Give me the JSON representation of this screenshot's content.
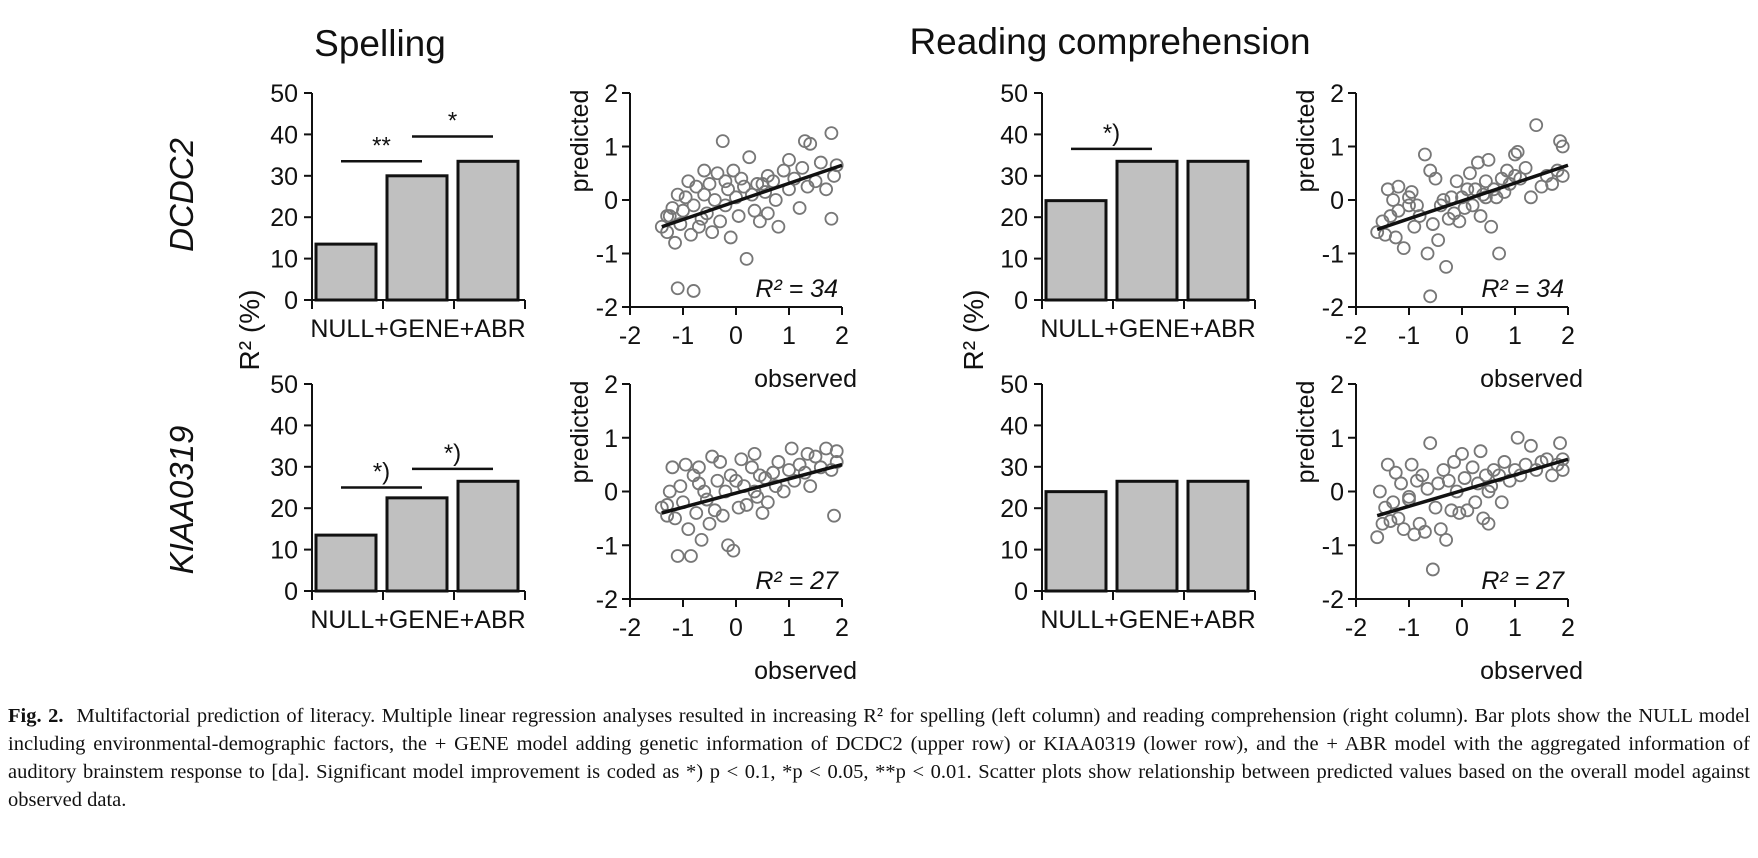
{
  "columns": [
    {
      "title": "Spelling"
    },
    {
      "title": "Reading comprehension"
    }
  ],
  "rows": [
    {
      "label": "DCDC2"
    },
    {
      "label": "KIAA0319"
    }
  ],
  "bar_ylabel": "R² (%)",
  "bar_category_text": "NULL+GENE+ABR",
  "scatter_xlabel": "observed",
  "scatter_ylabel": "predicted",
  "chart_data": [
    {
      "type": "bar",
      "panel": "Spelling / DCDC2",
      "categories": [
        "NULL",
        "+GENE",
        "+ABR"
      ],
      "values": [
        13.5,
        30,
        33.5
      ],
      "ylim": [
        0,
        50
      ],
      "yticks": [
        0,
        10,
        20,
        30,
        40,
        50
      ],
      "significance": [
        {
          "from": 0,
          "to": 1,
          "label": "**",
          "y": 33.5
        },
        {
          "from": 1,
          "to": 2,
          "label": "*",
          "y": 39.5
        }
      ]
    },
    {
      "type": "scatter",
      "panel": "Spelling / DCDC2",
      "xlabel": "observed",
      "ylabel": "predicted",
      "xlim": [
        -2,
        2
      ],
      "ylim": [
        -2,
        2
      ],
      "xticks": [
        -2,
        -1,
        0,
        1,
        2
      ],
      "yticks": [
        -2,
        -1,
        0,
        1,
        2
      ],
      "fit_line": [
        [
          -1.4,
          -0.5
        ],
        [
          2,
          0.65
        ]
      ],
      "annotation": "R² = 34",
      "points": [
        [
          -1.4,
          -0.5
        ],
        [
          -1.3,
          -0.6
        ],
        [
          -1.25,
          -0.3
        ],
        [
          -1.2,
          -0.15
        ],
        [
          -1.15,
          -0.8
        ],
        [
          -1.1,
          0.1
        ],
        [
          -1.05,
          -0.45
        ],
        [
          -1.0,
          -0.2
        ],
        [
          -0.95,
          0.05
        ],
        [
          -0.9,
          0.35
        ],
        [
          -0.85,
          -0.65
        ],
        [
          -0.8,
          -0.1
        ],
        [
          -0.75,
          0.25
        ],
        [
          -0.7,
          -0.5
        ],
        [
          -0.65,
          -0.35
        ],
        [
          -0.6,
          0.1
        ],
        [
          -0.55,
          -0.25
        ],
        [
          -0.5,
          0.3
        ],
        [
          -0.45,
          -0.6
        ],
        [
          -0.4,
          0.0
        ],
        [
          -0.35,
          0.5
        ],
        [
          -0.3,
          -0.4
        ],
        [
          -0.25,
          1.1
        ],
        [
          -0.2,
          -0.1
        ],
        [
          -0.15,
          0.2
        ],
        [
          -0.1,
          -0.7
        ],
        [
          -0.05,
          0.55
        ],
        [
          0.0,
          0.05
        ],
        [
          0.05,
          -0.3
        ],
        [
          0.1,
          0.4
        ],
        [
          0.15,
          0.25
        ],
        [
          0.2,
          -1.1
        ],
        [
          0.25,
          0.8
        ],
        [
          0.3,
          0.1
        ],
        [
          0.35,
          -0.2
        ],
        [
          0.4,
          0.3
        ],
        [
          0.45,
          -0.4
        ],
        [
          0.5,
          0.3
        ],
        [
          0.55,
          0.15
        ],
        [
          0.6,
          -0.25
        ],
        [
          0.7,
          0.35
        ],
        [
          0.75,
          0.0
        ],
        [
          0.8,
          -0.5
        ],
        [
          0.9,
          0.55
        ],
        [
          1.0,
          0.2
        ],
        [
          1.1,
          0.4
        ],
        [
          1.2,
          -0.15
        ],
        [
          1.25,
          0.6
        ],
        [
          1.3,
          1.1
        ],
        [
          1.35,
          0.25
        ],
        [
          1.4,
          1.05
        ],
        [
          1.5,
          0.35
        ],
        [
          1.6,
          0.7
        ],
        [
          1.7,
          0.2
        ],
        [
          1.8,
          1.25
        ],
        [
          1.8,
          -0.35
        ],
        [
          1.85,
          0.45
        ],
        [
          1.9,
          0.65
        ],
        [
          -1.1,
          -1.65
        ],
        [
          -0.8,
          -1.7
        ],
        [
          -1.3,
          -0.3
        ],
        [
          -0.6,
          0.55
        ],
        [
          0.6,
          0.45
        ],
        [
          -0.2,
          0.35
        ],
        [
          1.0,
          0.75
        ]
      ]
    },
    {
      "type": "bar",
      "panel": "Reading comprehension / DCDC2",
      "categories": [
        "NULL",
        "+GENE",
        "+ABR"
      ],
      "values": [
        24,
        33.5,
        33.5
      ],
      "ylim": [
        0,
        50
      ],
      "yticks": [
        0,
        10,
        20,
        30,
        40,
        50
      ],
      "significance": [
        {
          "from": 0,
          "to": 1,
          "label": "*)",
          "y": 36.5
        }
      ]
    },
    {
      "type": "scatter",
      "panel": "Reading comprehension / DCDC2",
      "xlabel": "observed",
      "ylabel": "predicted",
      "xlim": [
        -2,
        2
      ],
      "ylim": [
        -2,
        2
      ],
      "xticks": [
        -2,
        -1,
        0,
        1,
        2
      ],
      "yticks": [
        -2,
        -1,
        0,
        1,
        2
      ],
      "fit_line": [
        [
          -1.6,
          -0.55
        ],
        [
          2,
          0.65
        ]
      ],
      "annotation": "R² = 34",
      "points": [
        [
          -1.6,
          -0.6
        ],
        [
          -1.5,
          -0.4
        ],
        [
          -1.45,
          -0.65
        ],
        [
          -1.4,
          0.2
        ],
        [
          -1.35,
          -0.3
        ],
        [
          -1.3,
          0.0
        ],
        [
          -1.25,
          -0.7
        ],
        [
          -1.2,
          -0.2
        ],
        [
          -1.1,
          -0.9
        ],
        [
          -1.0,
          -0.1
        ],
        [
          -0.95,
          0.15
        ],
        [
          -0.9,
          -0.5
        ],
        [
          -0.85,
          -0.1
        ],
        [
          -0.8,
          -0.3
        ],
        [
          -0.7,
          0.85
        ],
        [
          -0.65,
          -1.0
        ],
        [
          -0.6,
          0.55
        ],
        [
          -0.55,
          -0.45
        ],
        [
          -0.5,
          0.4
        ],
        [
          -0.45,
          -0.75
        ],
        [
          -0.4,
          -0.1
        ],
        [
          -0.35,
          0.0
        ],
        [
          -0.3,
          -1.25
        ],
        [
          -0.25,
          -0.35
        ],
        [
          -0.2,
          0.05
        ],
        [
          -0.15,
          -0.25
        ],
        [
          -0.1,
          0.35
        ],
        [
          -0.05,
          -0.4
        ],
        [
          0.0,
          0.05
        ],
        [
          0.05,
          -0.15
        ],
        [
          0.1,
          0.2
        ],
        [
          0.15,
          0.5
        ],
        [
          0.2,
          -0.1
        ],
        [
          0.25,
          0.2
        ],
        [
          0.3,
          0.7
        ],
        [
          0.35,
          -0.3
        ],
        [
          0.4,
          0.1
        ],
        [
          0.45,
          0.35
        ],
        [
          0.5,
          0.75
        ],
        [
          0.55,
          -0.5
        ],
        [
          0.6,
          0.2
        ],
        [
          0.65,
          0.05
        ],
        [
          0.7,
          -1.0
        ],
        [
          0.75,
          0.4
        ],
        [
          0.8,
          0.15
        ],
        [
          0.85,
          0.55
        ],
        [
          0.9,
          0.3
        ],
        [
          1.0,
          0.85
        ],
        [
          1.05,
          0.9
        ],
        [
          1.1,
          0.4
        ],
        [
          1.2,
          0.6
        ],
        [
          1.3,
          0.05
        ],
        [
          1.4,
          1.4
        ],
        [
          1.5,
          0.25
        ],
        [
          1.6,
          0.45
        ],
        [
          1.7,
          0.3
        ],
        [
          1.8,
          0.55
        ],
        [
          1.85,
          1.1
        ],
        [
          1.9,
          1.0
        ],
        [
          1.9,
          0.45
        ],
        [
          -1.2,
          0.25
        ],
        [
          -0.6,
          -1.8
        ],
        [
          -1.0,
          0.05
        ],
        [
          0.45,
          0.05
        ],
        [
          1.0,
          0.45
        ]
      ]
    },
    {
      "type": "bar",
      "panel": "Spelling / KIAA0319",
      "categories": [
        "NULL",
        "+GENE",
        "+ABR"
      ],
      "values": [
        13.5,
        22.5,
        26.5
      ],
      "ylim": [
        0,
        50
      ],
      "yticks": [
        0,
        10,
        20,
        30,
        40,
        50
      ],
      "significance": [
        {
          "from": 0,
          "to": 1,
          "label": "*)",
          "y": 25
        },
        {
          "from": 1,
          "to": 2,
          "label": "*)",
          "y": 29.5
        }
      ]
    },
    {
      "type": "scatter",
      "panel": "Spelling / KIAA0319",
      "xlabel": "observed",
      "ylabel": "predicted",
      "xlim": [
        -2,
        2
      ],
      "ylim": [
        -2,
        2
      ],
      "xticks": [
        -2,
        -1,
        0,
        1,
        2
      ],
      "yticks": [
        -2,
        -1,
        0,
        1,
        2
      ],
      "fit_line": [
        [
          -1.4,
          -0.4
        ],
        [
          2,
          0.5
        ]
      ],
      "annotation": "R² = 27",
      "points": [
        [
          -1.4,
          -0.3
        ],
        [
          -1.3,
          -0.45
        ],
        [
          -1.25,
          0.0
        ],
        [
          -1.2,
          0.45
        ],
        [
          -1.15,
          -0.5
        ],
        [
          -1.1,
          -1.2
        ],
        [
          -1.05,
          0.1
        ],
        [
          -1.0,
          -0.2
        ],
        [
          -0.95,
          0.5
        ],
        [
          -0.9,
          -0.7
        ],
        [
          -0.85,
          -1.2
        ],
        [
          -0.8,
          0.3
        ],
        [
          -0.75,
          -0.4
        ],
        [
          -0.7,
          0.15
        ],
        [
          -0.65,
          -0.9
        ],
        [
          -0.6,
          0.0
        ],
        [
          -0.55,
          -0.15
        ],
        [
          -0.5,
          -0.6
        ],
        [
          -0.45,
          0.65
        ],
        [
          -0.4,
          -0.35
        ],
        [
          -0.35,
          0.2
        ],
        [
          -0.3,
          0.55
        ],
        [
          -0.25,
          -0.45
        ],
        [
          -0.2,
          0.0
        ],
        [
          -0.15,
          -1.0
        ],
        [
          -0.1,
          0.3
        ],
        [
          -0.05,
          -1.1
        ],
        [
          0.0,
          0.2
        ],
        [
          0.05,
          -0.3
        ],
        [
          0.1,
          0.6
        ],
        [
          0.15,
          0.1
        ],
        [
          0.2,
          -0.25
        ],
        [
          0.3,
          0.45
        ],
        [
          0.35,
          0.0
        ],
        [
          0.4,
          -0.1
        ],
        [
          0.45,
          0.3
        ],
        [
          0.5,
          -0.4
        ],
        [
          0.55,
          0.25
        ],
        [
          0.6,
          -0.2
        ],
        [
          0.7,
          0.35
        ],
        [
          0.75,
          0.1
        ],
        [
          0.8,
          0.55
        ],
        [
          0.9,
          0.0
        ],
        [
          1.0,
          0.4
        ],
        [
          1.05,
          0.8
        ],
        [
          1.1,
          0.2
        ],
        [
          1.2,
          0.5
        ],
        [
          1.3,
          0.35
        ],
        [
          1.35,
          0.7
        ],
        [
          1.4,
          0.1
        ],
        [
          1.5,
          0.65
        ],
        [
          1.6,
          0.45
        ],
        [
          1.7,
          0.8
        ],
        [
          1.8,
          0.4
        ],
        [
          1.85,
          -0.45
        ],
        [
          1.9,
          0.55
        ],
        [
          1.9,
          0.75
        ],
        [
          -1.3,
          -0.25
        ],
        [
          -0.7,
          0.45
        ],
        [
          0.35,
          0.7
        ]
      ]
    },
    {
      "type": "bar",
      "panel": "Reading comprehension / KIAA0319",
      "categories": [
        "NULL",
        "+GENE",
        "+ABR"
      ],
      "values": [
        24,
        26.5,
        26.5
      ],
      "ylim": [
        0,
        50
      ],
      "yticks": [
        0,
        10,
        20,
        30,
        40,
        50
      ],
      "significance": []
    },
    {
      "type": "scatter",
      "panel": "Reading comprehension / KIAA0319",
      "xlabel": "observed",
      "ylabel": "predicted",
      "xlim": [
        -2,
        2
      ],
      "ylim": [
        -2,
        2
      ],
      "xticks": [
        -2,
        -1,
        0,
        1,
        2
      ],
      "yticks": [
        -2,
        -1,
        0,
        1,
        2
      ],
      "fit_line": [
        [
          -1.6,
          -0.45
        ],
        [
          2,
          0.6
        ]
      ],
      "annotation": "R² = 27",
      "points": [
        [
          -1.6,
          -0.85
        ],
        [
          -1.55,
          0.0
        ],
        [
          -1.5,
          -0.6
        ],
        [
          -1.45,
          -0.3
        ],
        [
          -1.4,
          0.5
        ],
        [
          -1.35,
          -0.55
        ],
        [
          -1.3,
          -0.2
        ],
        [
          -1.25,
          0.35
        ],
        [
          -1.2,
          -0.5
        ],
        [
          -1.15,
          0.15
        ],
        [
          -1.1,
          -0.7
        ],
        [
          -1.0,
          -0.1
        ],
        [
          -0.95,
          0.5
        ],
        [
          -0.9,
          -0.8
        ],
        [
          -0.85,
          0.2
        ],
        [
          -0.8,
          -0.6
        ],
        [
          -0.75,
          0.3
        ],
        [
          -0.7,
          -0.75
        ],
        [
          -0.65,
          0.05
        ],
        [
          -0.6,
          0.9
        ],
        [
          -0.55,
          -1.45
        ],
        [
          -0.5,
          -0.3
        ],
        [
          -0.45,
          0.15
        ],
        [
          -0.4,
          -0.7
        ],
        [
          -0.35,
          0.4
        ],
        [
          -0.3,
          -0.9
        ],
        [
          -0.25,
          0.2
        ],
        [
          -0.2,
          -0.35
        ],
        [
          -0.15,
          0.55
        ],
        [
          -0.1,
          0.0
        ],
        [
          -0.05,
          -0.4
        ],
        [
          0.0,
          0.7
        ],
        [
          0.05,
          0.25
        ],
        [
          0.1,
          -0.35
        ],
        [
          0.2,
          0.45
        ],
        [
          0.25,
          -0.2
        ],
        [
          0.3,
          0.15
        ],
        [
          0.35,
          0.75
        ],
        [
          0.4,
          -0.5
        ],
        [
          0.45,
          0.3
        ],
        [
          0.5,
          -0.6
        ],
        [
          0.55,
          0.1
        ],
        [
          0.6,
          0.4
        ],
        [
          0.7,
          0.3
        ],
        [
          0.75,
          -0.2
        ],
        [
          0.8,
          0.55
        ],
        [
          0.9,
          0.2
        ],
        [
          1.0,
          0.4
        ],
        [
          1.05,
          1.0
        ],
        [
          1.1,
          0.3
        ],
        [
          1.2,
          0.5
        ],
        [
          1.3,
          0.85
        ],
        [
          1.4,
          0.4
        ],
        [
          1.5,
          0.55
        ],
        [
          1.6,
          0.6
        ],
        [
          1.7,
          0.3
        ],
        [
          1.8,
          0.5
        ],
        [
          1.85,
          0.9
        ],
        [
          1.9,
          0.4
        ],
        [
          1.9,
          0.6
        ],
        [
          -1.0,
          -0.15
        ],
        [
          0.5,
          0.0
        ]
      ]
    }
  ],
  "caption": {
    "label": "Fig. 2.",
    "text": "Multifactorial prediction of literacy. Multiple linear regression analyses resulted in increasing R² for spelling (left column) and reading comprehension (right column). Bar plots show the NULL model including environmental-demographic factors, the + GENE model adding genetic information of DCDC2 (upper row) or KIAA0319 (lower row), and the + ABR model with the aggregated information of auditory brainstem response to [da]. Significant model improvement is coded as *) p < 0.1, *p < 0.05, **p < 0.01. Scatter plots show relationship between predicted values based on the overall model against observed data."
  }
}
